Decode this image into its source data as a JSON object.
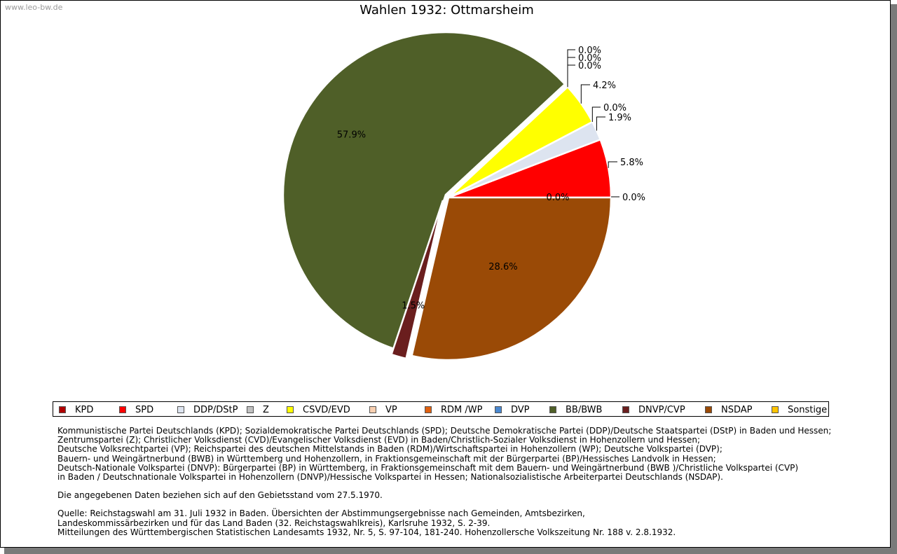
{
  "watermark": "www.leo-bw.de",
  "chart_data": {
    "type": "pie",
    "title": "Wahlen 1932: Ottmarsheim",
    "slices": [
      {
        "name": "KPD",
        "value": 0.0,
        "label": "0.0%",
        "color": "#b00000"
      },
      {
        "name": "SPD",
        "value": 5.8,
        "label": "5.8%",
        "color": "#ff0000"
      },
      {
        "name": "DDP/DStP",
        "value": 1.9,
        "label": "1.9%",
        "color": "#dde4f0"
      },
      {
        "name": "Z",
        "value": 0.0,
        "label": "0.0%",
        "color": "#c0c0c0"
      },
      {
        "name": "CSVD/EVD",
        "value": 4.2,
        "label": "4.2%",
        "color": "#ffff00"
      },
      {
        "name": "VP",
        "value": 0.0,
        "label": "0.0%",
        "color": "#f8cfb0"
      },
      {
        "name": "RDM /WP",
        "value": 0.0,
        "label": "0.0%",
        "color": "#e06010"
      },
      {
        "name": "DVP",
        "value": 0.0,
        "label": "0.0%",
        "color": "#4a88d0"
      },
      {
        "name": "BB/BWB",
        "value": 57.9,
        "label": "57.9%",
        "color": "#4f5f28"
      },
      {
        "name": "DNVP/CVP",
        "value": 1.5,
        "label": "1.5%",
        "color": "#6a1e1e"
      },
      {
        "name": "NSDAP",
        "value": 28.6,
        "label": "28.6%",
        "color": "#9a4a06"
      },
      {
        "name": "Sonstige",
        "value": 0.0,
        "label": "0.0%",
        "color": "#ffc400"
      }
    ]
  },
  "notes": {
    "line1": "Kommunistische Partei Deutschlands (KPD); Sozialdemokratische Partei Deutschlands (SPD); Deutsche Demokratische Partei (DDP)/Deutsche Staatspartei (DStP) in Baden und Hessen;",
    "line2": "Zentrumspartei (Z); Christlicher Volksdienst (CVD)/Evangelischer Volksdienst (EVD) in Baden/Christlich-Sozialer Volksdienst in Hohenzollern und Hessen;",
    "line3": "Deutsche Volksrechtpartei (VP); Reichspartei des deutschen Mittelstands in Baden (RDM)/Wirtschaftspartei in Hohenzollern (WP); Deutsche Volkspartei (DVP);",
    "line4": "Bauern- und Weingärtnerbund (BWB) in Württemberg und Hohenzollern, in Fraktionsgemeinschaft mit der Bürgerpartei (BP)/Hessisches Landvolk in Hessen;",
    "line5": "Deutsch-Nationale Volkspartei (DNVP): Bürgerpartei (BP) in Württemberg, in Fraktionsgemeinschaft mit dem Bauern- und Weingärtnerbund (BWB )/Christliche Volkspartei (CVP)",
    "line6": "in Baden / Deutschnationale Volkspartei in Hohenzollern (DNVP)/Hessische Volkspartei in Hessen; Nationalsozialistische Arbeiterpartei Deutschlands (NSDAP).",
    "stand": "Die angegebenen Daten beziehen sich auf den Gebietsstand vom 27.5.1970.",
    "quelle1": "Quelle: Reichstagswahl am 31. Juli 1932 in Baden. Übersichten der Abstimmungsergebnisse nach Gemeinden, Amtsbezirken,",
    "quelle2": "Landeskommissärbezirken und für das Land Baden (32. Reichstagswahlkreis), Karlsruhe 1932, S. 2-39.",
    "quelle3": "Mitteilungen des Württembergischen Statistischen Landesamts 1932, Nr. 5, S. 97-104, 181-240. Hohenzollersche Volkszeitung Nr. 188 v. 2.8.1932."
  }
}
